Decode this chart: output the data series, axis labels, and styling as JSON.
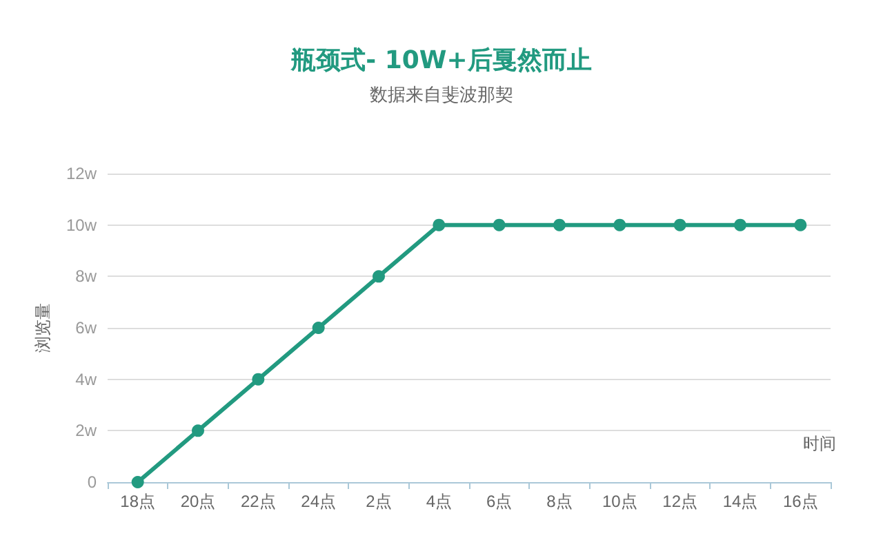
{
  "chart_data": {
    "type": "line",
    "title": "瓶颈式- 10W+后戛然而止",
    "subtitle": "数据来自斐波那契",
    "xlabel": "时间",
    "ylabel": "浏览量",
    "categories": [
      "18点",
      "20点",
      "22点",
      "24点",
      "2点",
      "4点",
      "6点",
      "8点",
      "10点",
      "12点",
      "14点",
      "16点"
    ],
    "series": [
      {
        "color": "#229a80",
        "values": [
          0,
          2,
          4,
          6,
          8,
          10,
          10,
          10,
          10,
          10,
          10,
          10
        ]
      }
    ],
    "ylim": [
      0,
      12
    ],
    "yticks": [
      0,
      {
        "value": 2,
        "label": "2w"
      },
      {
        "value": 4,
        "label": "4w"
      },
      {
        "value": 6,
        "label": "6w"
      },
      {
        "value": 8,
        "label": "8w"
      },
      {
        "value": 10,
        "label": "10w"
      },
      {
        "value": 12,
        "label": "12w"
      }
    ],
    "grid": "y",
    "marker": "circle",
    "line_style": "solid"
  }
}
